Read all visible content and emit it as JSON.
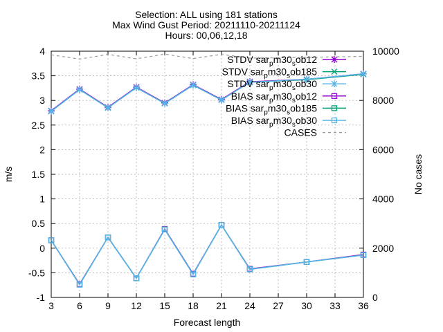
{
  "chart_data": {
    "type": "line",
    "title_lines": [
      "Selection: ALL using   181 stations",
      "Max Wind Gust   Period: 20211110-20211124",
      "Hours: 00,06,12,18"
    ],
    "xlabel": "Forecast length",
    "ylabel": "m/s",
    "y2label": "No cases",
    "x": [
      3,
      6,
      9,
      12,
      15,
      18,
      21,
      24,
      30,
      36
    ],
    "xlim": [
      3,
      36
    ],
    "xticks": [
      3,
      6,
      9,
      12,
      15,
      18,
      21,
      24,
      27,
      30,
      33,
      36
    ],
    "ylim": [
      -1,
      4
    ],
    "yticks": [
      -1,
      -0.5,
      0,
      0.5,
      1,
      1.5,
      2,
      2.5,
      3,
      3.5,
      4
    ],
    "y2lim": [
      0,
      10000
    ],
    "y2ticks": [
      0,
      2000,
      4000,
      6000,
      8000,
      10000
    ],
    "grid": true,
    "legend_position": "top-right",
    "series": [
      {
        "label_pre": "STDV sar",
        "label_sub": "p",
        "label_mid": "m30",
        "label_sub2": "s",
        "label_post": "ob12",
        "color": "#9400d3",
        "marker": "star",
        "dash": false,
        "axis": "y1",
        "values": [
          2.79,
          3.23,
          2.86,
          3.27,
          2.95,
          3.32,
          3.02,
          3.38,
          3.43,
          3.54
        ]
      },
      {
        "label_pre": "STDV sar",
        "label_sub": "p",
        "label_mid": "m30",
        "label_sub2": "s",
        "label_post": "ob185",
        "color": "#009e73",
        "marker": "x",
        "dash": false,
        "axis": "y1",
        "values": [
          2.78,
          3.22,
          2.85,
          3.26,
          2.94,
          3.31,
          3.01,
          3.37,
          3.42,
          3.53
        ]
      },
      {
        "label_pre": "STDV sar",
        "label_sub": "p",
        "label_mid": "m30",
        "label_sub2": "s",
        "label_post": "ob30",
        "color": "#56b4e9",
        "marker": "star",
        "dash": false,
        "axis": "y1",
        "values": [
          2.78,
          3.22,
          2.85,
          3.26,
          2.94,
          3.31,
          3.01,
          3.37,
          3.43,
          3.54
        ]
      },
      {
        "label_pre": "BIAS sar",
        "label_sub": "p",
        "label_mid": "m30",
        "label_sub2": "s",
        "label_post": "ob12",
        "color": "#9400d3",
        "marker": "square",
        "dash": false,
        "axis": "y1",
        "values": [
          0.16,
          -0.73,
          0.22,
          -0.61,
          0.39,
          -0.52,
          0.47,
          -0.42,
          -0.28,
          -0.13
        ]
      },
      {
        "label_pre": "BIAS sar",
        "label_sub": "p",
        "label_mid": "m30",
        "label_sub2": "s",
        "label_post": "ob185",
        "color": "#009e73",
        "marker": "square",
        "dash": false,
        "axis": "y1",
        "values": [
          0.16,
          -0.74,
          0.22,
          -0.61,
          0.38,
          -0.53,
          0.47,
          -0.43,
          -0.28,
          -0.14
        ]
      },
      {
        "label_pre": "BIAS sar",
        "label_sub": "p",
        "label_mid": "m30",
        "label_sub2": "s",
        "label_post": "ob30",
        "color": "#56b4e9",
        "marker": "square",
        "dash": false,
        "axis": "y1",
        "values": [
          0.16,
          -0.74,
          0.22,
          -0.61,
          0.38,
          -0.53,
          0.47,
          -0.43,
          -0.28,
          -0.14
        ]
      },
      {
        "label_pre": "CASES",
        "label_sub": "",
        "label_mid": "",
        "label_sub2": "",
        "label_post": "",
        "color": "#999999",
        "marker": "none",
        "dash": true,
        "axis": "y2",
        "values": [
          9850,
          9680,
          9870,
          9690,
          9880,
          9700,
          9870,
          9720,
          9750,
          9790
        ]
      }
    ]
  }
}
